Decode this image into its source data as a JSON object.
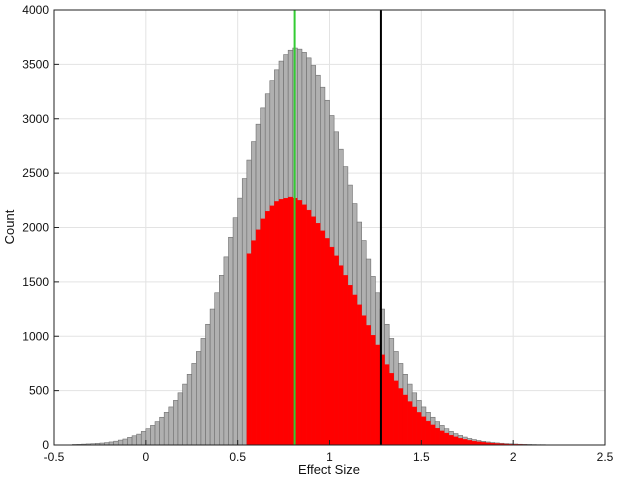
{
  "chart_data": {
    "type": "bar",
    "title": "",
    "xlabel": "Effect Size",
    "ylabel": "Count",
    "xlim": [
      -0.5,
      2.5
    ],
    "ylim": [
      0,
      4000
    ],
    "xticks": [
      "-0.5",
      "0",
      "0.5",
      "1",
      "1.5",
      "2",
      "2.5"
    ],
    "yticks": [
      "0",
      "500",
      "1000",
      "1500",
      "2000",
      "2500",
      "3000",
      "3500",
      "4000"
    ],
    "grid": true,
    "bin_width": 0.025,
    "bin_start": -0.4,
    "series": [
      {
        "color": "#b0b0b0",
        "edgecolor": "#6e6e6e",
        "values": [
          5,
          6,
          8,
          10,
          12,
          15,
          18,
          22,
          28,
          35,
          45,
          55,
          70,
          85,
          100,
          125,
          150,
          180,
          215,
          255,
          300,
          350,
          410,
          480,
          560,
          650,
          750,
          860,
          980,
          1110,
          1250,
          1400,
          1560,
          1730,
          1910,
          2090,
          2270,
          2450,
          2620,
          2790,
          2950,
          3100,
          3230,
          3350,
          3450,
          3530,
          3590,
          3630,
          3650,
          3640,
          3610,
          3560,
          3490,
          3400,
          3290,
          3170,
          3030,
          2880,
          2720,
          2560,
          2390,
          2220,
          2050,
          1880,
          1710,
          1550,
          1400,
          1250,
          1110,
          980,
          860,
          750,
          650,
          560,
          480,
          410,
          350,
          300,
          255,
          215,
          180,
          150,
          125,
          105,
          88,
          73,
          60,
          50,
          41,
          34,
          28,
          23,
          19,
          16,
          13,
          11,
          9,
          7,
          6,
          5,
          4,
          3,
          3,
          2
        ]
      },
      {
        "color": "#ff0000",
        "edgecolor": "#ff0000",
        "values": [
          0,
          0,
          0,
          0,
          0,
          0,
          0,
          0,
          0,
          0,
          0,
          0,
          0,
          0,
          0,
          0,
          0,
          0,
          0,
          0,
          0,
          0,
          0,
          0,
          0,
          0,
          0,
          0,
          0,
          0,
          0,
          0,
          0,
          0,
          0,
          0,
          0,
          0,
          1760,
          1880,
          1980,
          2080,
          2150,
          2200,
          2240,
          2260,
          2270,
          2280,
          2270,
          2250,
          2210,
          2160,
          2100,
          2040,
          1970,
          1900,
          1820,
          1740,
          1650,
          1560,
          1470,
          1380,
          1290,
          1190,
          1100,
          1010,
          920,
          830,
          740,
          660,
          590,
          520,
          460,
          400,
          350,
          300,
          260,
          220,
          185,
          155,
          130,
          110,
          90,
          75,
          62,
          52,
          43,
          36,
          30,
          25,
          20,
          17,
          14,
          11,
          9,
          7,
          6,
          5,
          4,
          3,
          2,
          2,
          1,
          1
        ]
      }
    ],
    "reference_lines": [
      {
        "x": 0.81,
        "color": "#33cc33"
      },
      {
        "x": 1.28,
        "color": "#000000"
      }
    ]
  }
}
